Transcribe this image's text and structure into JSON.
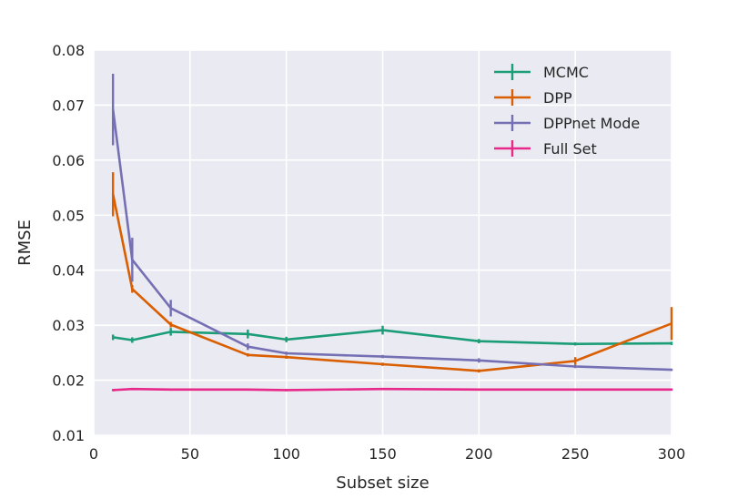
{
  "chart_data": {
    "type": "line",
    "xlabel": "Subset size",
    "ylabel": "RMSE",
    "xlim": [
      0,
      300
    ],
    "ylim": [
      0.01,
      0.08
    ],
    "xticks": [
      "0",
      "50",
      "100",
      "150",
      "200",
      "250",
      "300"
    ],
    "yticks": [
      "0.01",
      "0.02",
      "0.03",
      "0.04",
      "0.05",
      "0.06",
      "0.07",
      "0.08"
    ],
    "grid": true,
    "legend_position": "top-right",
    "series": [
      {
        "name": "MCMC",
        "color": "#1b9e77",
        "points": [
          {
            "x": 10,
            "y": 0.0278,
            "err": 0.0005
          },
          {
            "x": 20,
            "y": 0.0273,
            "err": 0.0005
          },
          {
            "x": 40,
            "y": 0.0288,
            "err": 0.0007
          },
          {
            "x": 80,
            "y": 0.0284,
            "err": 0.0008
          },
          {
            "x": 100,
            "y": 0.0274,
            "err": 0.0005
          },
          {
            "x": 150,
            "y": 0.0291,
            "err": 0.0008
          },
          {
            "x": 200,
            "y": 0.0271,
            "err": 0.0004
          },
          {
            "x": 250,
            "y": 0.0266,
            "err": 0.0003
          },
          {
            "x": 300,
            "y": 0.0267,
            "err": 0.0003
          }
        ]
      },
      {
        "name": "DPP",
        "color": "#d95f02",
        "points": [
          {
            "x": 10,
            "y": 0.0538,
            "err": 0.004
          },
          {
            "x": 20,
            "y": 0.0366,
            "err": 0.0007
          },
          {
            "x": 40,
            "y": 0.0301,
            "err": 0.0005
          },
          {
            "x": 80,
            "y": 0.0246,
            "err": 0.0003
          },
          {
            "x": 100,
            "y": 0.0242,
            "err": 0.0003
          },
          {
            "x": 150,
            "y": 0.0229,
            "err": 0.0003
          },
          {
            "x": 200,
            "y": 0.0217,
            "err": 0.0003
          },
          {
            "x": 250,
            "y": 0.0235,
            "err": 0.0007
          },
          {
            "x": 300,
            "y": 0.0303,
            "err": 0.003
          }
        ]
      },
      {
        "name": "DPPnet Mode",
        "color": "#7570b3",
        "points": [
          {
            "x": 10,
            "y": 0.0692,
            "err": 0.0065
          },
          {
            "x": 20,
            "y": 0.0419,
            "err": 0.004
          },
          {
            "x": 40,
            "y": 0.0331,
            "err": 0.0015
          },
          {
            "x": 80,
            "y": 0.0261,
            "err": 0.0006
          },
          {
            "x": 100,
            "y": 0.0249,
            "err": 0.0003
          },
          {
            "x": 150,
            "y": 0.0243,
            "err": 0.0003
          },
          {
            "x": 200,
            "y": 0.0236,
            "err": 0.0004
          },
          {
            "x": 250,
            "y": 0.0225,
            "err": 0.0003
          },
          {
            "x": 300,
            "y": 0.0219,
            "err": 0.0002
          }
        ]
      },
      {
        "name": "Full Set",
        "color": "#e7298a",
        "points": [
          {
            "x": 10,
            "y": 0.0182,
            "err": 0.0002
          },
          {
            "x": 20,
            "y": 0.0184,
            "err": 0.0002
          },
          {
            "x": 40,
            "y": 0.0183,
            "err": 0.0002
          },
          {
            "x": 80,
            "y": 0.0183,
            "err": 0.0002
          },
          {
            "x": 100,
            "y": 0.0182,
            "err": 0.0002
          },
          {
            "x": 150,
            "y": 0.0184,
            "err": 0.0002
          },
          {
            "x": 200,
            "y": 0.0183,
            "err": 0.0002
          },
          {
            "x": 250,
            "y": 0.0183,
            "err": 0.0002
          },
          {
            "x": 300,
            "y": 0.0183,
            "err": 0.0002
          }
        ]
      }
    ]
  }
}
